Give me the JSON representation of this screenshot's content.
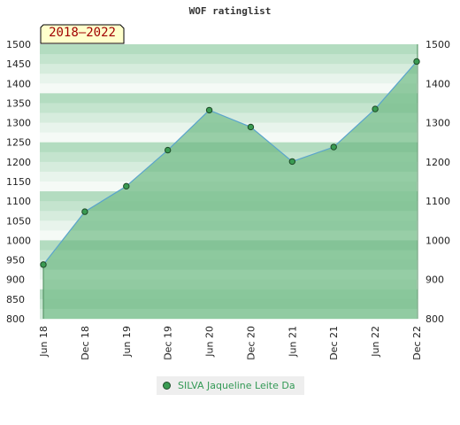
{
  "chart_data": {
    "type": "area",
    "title": "WOF ratinglist",
    "period_label": "2018–2022",
    "categories": [
      "Jun 18",
      "Dec 18",
      "Jun 19",
      "Dec 19",
      "Jun 20",
      "Dec 20",
      "Jun 21",
      "Dec 21",
      "Jun 22",
      "Dec 22"
    ],
    "series": [
      {
        "name": "SILVA Jaqueline Leite Da",
        "values": [
          938,
          1073,
          1138,
          1230,
          1332,
          1289,
          1201,
          1238,
          1335,
          1456
        ]
      }
    ],
    "y_left": {
      "range": [
        800,
        1500
      ],
      "ticks": [
        800,
        850,
        900,
        950,
        1000,
        1050,
        1100,
        1150,
        1200,
        1250,
        1300,
        1350,
        1400,
        1450,
        1500
      ]
    },
    "y_right": {
      "range": [
        800,
        1500
      ],
      "ticks": [
        800,
        900,
        1000,
        1100,
        1200,
        1300,
        1400,
        1500
      ]
    },
    "colors": {
      "line": "#5aa4cc",
      "fill": "#7dc291",
      "marker": "#3a9b52",
      "legend_text": "#339955"
    },
    "legend_placement": "bottom-center"
  }
}
